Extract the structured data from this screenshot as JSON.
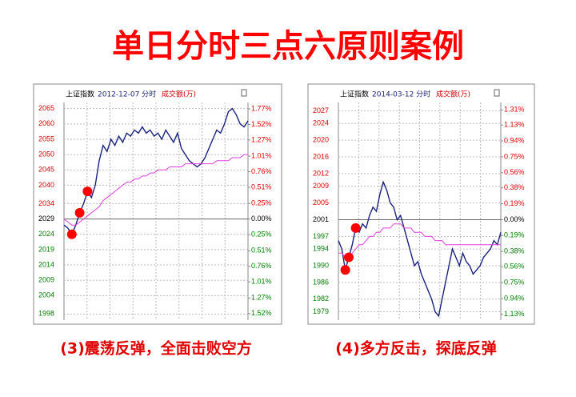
{
  "title": "单日分时三点六原则案例",
  "chart_data": [
    {
      "type": "line",
      "index_name": "上证指数",
      "date": "2012-12-07 分时",
      "volume_label": "成交额(万)",
      "caption": "(3)震荡反弹，全面击败空方",
      "up_color": "#e00000",
      "down_color": "#008000",
      "flat_color": "#000000",
      "grid": true,
      "ylim": [
        1996,
        2067
      ],
      "yticks": [
        2065,
        2060,
        2055,
        2050,
        2045,
        2040,
        2034,
        2029,
        2024,
        2019,
        2014,
        2009,
        2004,
        1998
      ],
      "y2lim": [
        -1.626,
        1.873
      ],
      "y2ticks": [
        {
          "value": 1.77,
          "label": "1.77%"
        },
        {
          "value": 1.52,
          "label": "1.52%"
        },
        {
          "value": 1.27,
          "label": "1.27%"
        },
        {
          "value": 1.01,
          "label": "1.01%"
        },
        {
          "value": 0.76,
          "label": "0.76%"
        },
        {
          "value": 0.51,
          "label": "0.51%"
        },
        {
          "value": 0.25,
          "label": "0.25%"
        },
        {
          "value": 0,
          "label": "0.00%"
        },
        {
          "value": -0.25,
          "label": "0.25%"
        },
        {
          "value": -0.51,
          "label": "0.51%"
        },
        {
          "value": -0.76,
          "label": "0.76%"
        },
        {
          "value": -1.01,
          "label": "1.01%"
        },
        {
          "value": -1.27,
          "label": "1.27%"
        },
        {
          "value": -1.52,
          "label": "1.52%"
        }
      ],
      "series": [
        {
          "color": "#1a237e",
          "values": [
            2027,
            2026,
            2024,
            2027,
            2031,
            2034,
            2038,
            2036,
            2040,
            2048,
            2053,
            2051,
            2055,
            2053,
            2056,
            2054,
            2057,
            2056,
            2058,
            2057,
            2059,
            2057,
            2058,
            2056,
            2057,
            2055,
            2058,
            2056,
            2054,
            2057,
            2052,
            2050,
            2048,
            2047,
            2046,
            2047,
            2049,
            2052,
            2055,
            2058,
            2057,
            2060,
            2064,
            2065,
            2063,
            2060,
            2059,
            2061
          ]
        },
        {
          "color": "#e040e0",
          "values": [
            2029,
            2028,
            2027,
            2027,
            2028,
            2029,
            2030,
            2031,
            2032,
            2033,
            2035,
            2036,
            2037,
            2038,
            2039,
            2040,
            2041,
            2041,
            2042,
            2042,
            2043,
            2043,
            2044,
            2044,
            2045,
            2045,
            2045,
            2046,
            2046,
            2046,
            2046,
            2047,
            2047,
            2047,
            2047,
            2047,
            2047,
            2047,
            2047,
            2048,
            2048,
            2048,
            2048,
            2049,
            2049,
            2049,
            2050,
            2050
          ]
        },
        {
          "color": "#ff0000",
          "style": "dot",
          "values": [
            null,
            null,
            2024,
            null,
            2031,
            null,
            2038,
            null,
            null,
            null,
            null,
            null,
            null,
            null,
            null,
            null,
            null,
            null,
            null,
            null,
            null,
            null,
            null,
            null,
            null,
            null,
            null,
            null,
            null,
            null,
            null,
            null,
            null,
            null,
            null,
            null,
            null,
            null,
            null,
            null,
            null,
            null,
            null,
            null,
            null,
            null,
            null,
            null
          ]
        }
      ]
    },
    {
      "type": "line",
      "index_name": "上证指数",
      "date": "2014-03-12 分时",
      "volume_label": "成交额(万)",
      "caption": "(4)多方反击，探底反弹",
      "up_color": "#e00000",
      "down_color": "#008000",
      "flat_color": "#000000",
      "grid": true,
      "ylim": [
        1977,
        2029
      ],
      "yticks": [
        2027,
        2024,
        2020,
        2016,
        2012,
        2009,
        2005,
        2001,
        1997,
        1994,
        1990,
        1986,
        1982,
        1979
      ],
      "y2lim": [
        -1.199,
        1.399
      ],
      "y2ticks": [
        {
          "value": 1.31,
          "label": "1.31%"
        },
        {
          "value": 1.13,
          "label": "1.13%"
        },
        {
          "value": 0.94,
          "label": "0.94%"
        },
        {
          "value": 0.75,
          "label": "0.75%"
        },
        {
          "value": 0.56,
          "label": "0.56%"
        },
        {
          "value": 0.38,
          "label": "0.38%"
        },
        {
          "value": 0.19,
          "label": "0.19%"
        },
        {
          "value": 0,
          "label": "0.00%"
        },
        {
          "value": -0.19,
          "label": "0.19%"
        },
        {
          "value": -0.38,
          "label": "0.38%"
        },
        {
          "value": -0.56,
          "label": "0.56%"
        },
        {
          "value": -0.75,
          "label": "0.75%"
        },
        {
          "value": -0.94,
          "label": "0.94%"
        },
        {
          "value": -1.13,
          "label": "1.13%"
        }
      ],
      "series": [
        {
          "color": "#1a237e",
          "values": [
            1996,
            1994,
            1989,
            1992,
            1995,
            1999,
            1998,
            2000,
            1999,
            2002,
            2004,
            2003,
            2007,
            2010,
            2008,
            2005,
            2004,
            2001,
            2002,
            1999,
            1996,
            1993,
            1990,
            1991,
            1988,
            1986,
            1984,
            1982,
            1979,
            1978,
            1982,
            1986,
            1990,
            1994,
            1992,
            1990,
            1993,
            1991,
            1990,
            1988,
            1989,
            1990,
            1992,
            1993,
            1994,
            1996,
            1995,
            1998
          ]
        },
        {
          "color": "#e040e0",
          "values": [
            1993,
            1993,
            1992,
            1992,
            1993,
            1994,
            1995,
            1995,
            1996,
            1997,
            1997,
            1998,
            1998,
            1999,
            1999,
            1999,
            2000,
            2000,
            2000,
            1999,
            1999,
            1999,
            1998,
            1998,
            1998,
            1997,
            1997,
            1997,
            1996,
            1996,
            1996,
            1995,
            1995,
            1995,
            1995,
            1995,
            1995,
            1995,
            1995,
            1995,
            1995,
            1995,
            1995,
            1995,
            1995,
            1995,
            1995,
            1995
          ]
        },
        {
          "color": "#ff0000",
          "style": "dot",
          "values": [
            null,
            null,
            1989,
            1992,
            null,
            1999,
            null,
            null,
            null,
            null,
            null,
            null,
            null,
            null,
            null,
            null,
            null,
            null,
            null,
            null,
            null,
            null,
            null,
            null,
            null,
            null,
            null,
            null,
            null,
            null,
            null,
            null,
            null,
            null,
            null,
            null,
            null,
            null,
            null,
            null,
            null,
            null,
            null,
            null,
            null,
            null,
            null,
            null
          ]
        }
      ]
    }
  ]
}
